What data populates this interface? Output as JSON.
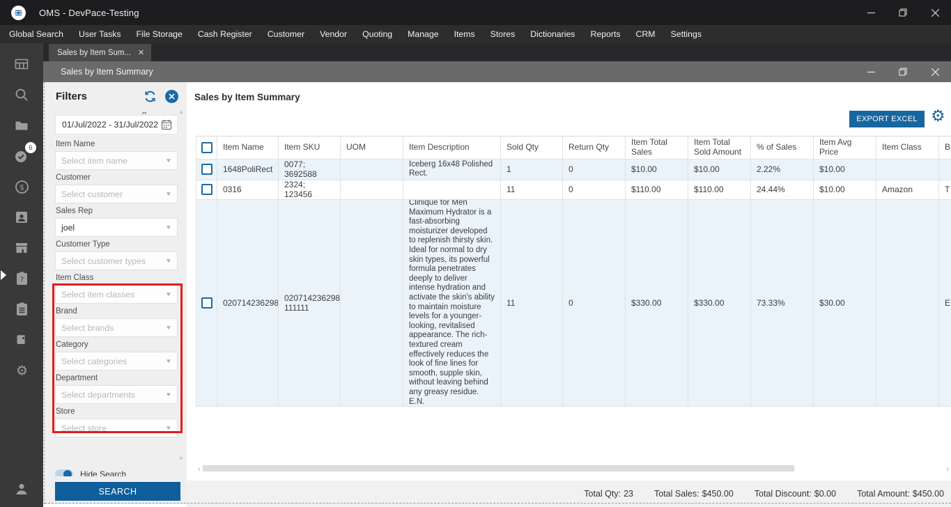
{
  "window": {
    "title": "OMS - DevPace-Testing"
  },
  "menu": {
    "items": [
      "Global Search",
      "User Tasks",
      "File Storage",
      "Cash Register",
      "Customer",
      "Vendor",
      "Quoting",
      "Manage",
      "Items",
      "Stores",
      "Dictionaries",
      "Reports",
      "CRM",
      "Settings"
    ]
  },
  "tab": {
    "label": "Sales by Item Sum...",
    "close": "×"
  },
  "inner_window": {
    "title": "Sales by Item Summary"
  },
  "sidebar": {
    "icons": [
      "dashboard",
      "search",
      "folder",
      "tasks-check",
      "finance-dollar",
      "contact-card",
      "storefront",
      "clipboard-question",
      "clipboard-list",
      "tag",
      "settings-gear"
    ],
    "task_badge": "6",
    "bottom_icon": "user"
  },
  "filters": {
    "title": "Filters",
    "date_range": "01/Jul/2022 - 31/Jul/2022",
    "fields": [
      {
        "label": "Item Name",
        "placeholder": "Select item name"
      },
      {
        "label": "Customer",
        "placeholder": "Select customer"
      },
      {
        "label": "Sales Rep",
        "value": "joel"
      },
      {
        "label": "Customer Type",
        "placeholder": "Select customer types"
      },
      {
        "label": "Item Class",
        "placeholder": "Select item classes"
      },
      {
        "label": "Brand",
        "placeholder": "Select brands"
      },
      {
        "label": "Category",
        "placeholder": "Select categories"
      },
      {
        "label": "Department",
        "placeholder": "Select departments"
      },
      {
        "label": "Store",
        "placeholder": "Select store"
      }
    ],
    "highlighted_section": [
      "Item Class",
      "Brand",
      "Category",
      "Department"
    ],
    "highlight_color": "#e11d1d",
    "toggle_label_clipped": "Hide Search",
    "search_label": "SEARCH"
  },
  "report": {
    "title": "Sales by Item Summary",
    "export_label": "EXPORT EXCEL",
    "totals": [
      {
        "label": "Total Qty:",
        "value": "23"
      },
      {
        "label": "Total Sales:",
        "value": "$450.00"
      },
      {
        "label": "Total Discount:",
        "value": "$0.00"
      },
      {
        "label": "Total Amount:",
        "value": "$450.00"
      }
    ]
  },
  "table": {
    "columns": [
      "Item Name",
      "Item SKU",
      "UOM",
      "Item Description",
      "Sold Qty",
      "Return Qty",
      "Item Total Sales",
      "Item Total Sold Amount",
      "% of Sales",
      "Item Avg Price",
      "Item Class",
      "B"
    ],
    "rows": [
      [
        "1648PoliRect",
        "0077; 3692588",
        "",
        "Iceberg 16x48 Polished Rect.",
        "1",
        "0",
        "$10.00",
        "$10.00",
        "2.22%",
        "$10.00",
        "",
        ""
      ],
      [
        "0316",
        "2324; 123456",
        "",
        "",
        "11",
        "0",
        "$110.00",
        "$110.00",
        "24.44%",
        "$10.00",
        "Amazon",
        "T"
      ],
      [
        "020714236298",
        "020714236298; 111111",
        "",
        "Clinique for Men Maximum Hydrator is a fast-absorbing moisturizer developed to replenish thirsty skin. Ideal for normal to dry skin types, its powerful formula penetrates deeply to deliver intense hydration and activate the skin's ability to maintain moisture levels for a younger-looking, revitalised appearance. The rich-textured cream effectively reduces the look of fine lines for smooth, supple skin, without leaving behind any greasy residue. E.N.",
        "11",
        "0",
        "$330.00",
        "$330.00",
        "73.33%",
        "$30.00",
        "",
        "E"
      ]
    ]
  },
  "colors": {
    "accent_blue": "#1a6aa5",
    "button_blue": "#0f5e9c",
    "export_blue": "#1667a0",
    "highlight_red": "#e11d1d",
    "row_alt": "#eaf3f9"
  }
}
